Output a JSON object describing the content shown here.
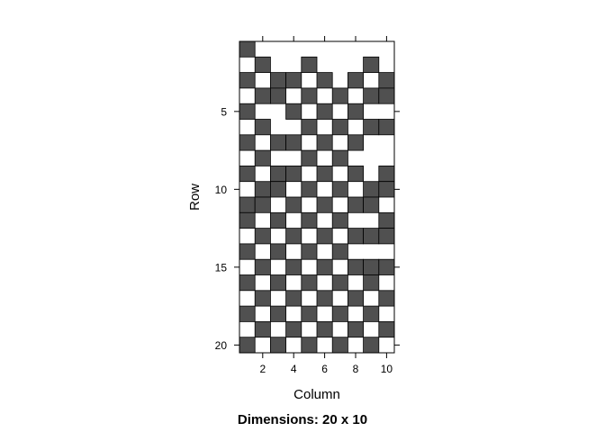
{
  "chart_data": {
    "type": "heatmap",
    "title": "Dimensions: 20 x 10",
    "xlabel": "Column",
    "ylabel": "Row",
    "xlim": [
      0.5,
      10.5
    ],
    "ylim": [
      0.5,
      20.5
    ],
    "y_reversed": true,
    "x_ticks": [
      2,
      4,
      6,
      8,
      10
    ],
    "y_ticks": [
      5,
      10,
      15,
      20
    ],
    "grid": false,
    "colors": {
      "filled": "#505050",
      "empty": "#ffffff",
      "border": "#000000"
    },
    "matrix": [
      [
        1,
        0,
        0,
        0,
        0,
        0,
        0,
        0,
        0,
        0
      ],
      [
        0,
        1,
        0,
        0,
        1,
        0,
        0,
        0,
        1,
        0
      ],
      [
        1,
        0,
        1,
        1,
        0,
        1,
        0,
        1,
        0,
        1
      ],
      [
        0,
        1,
        1,
        0,
        1,
        0,
        1,
        0,
        1,
        1
      ],
      [
        1,
        0,
        0,
        1,
        0,
        1,
        0,
        1,
        0,
        0
      ],
      [
        0,
        1,
        0,
        0,
        1,
        0,
        1,
        0,
        1,
        1
      ],
      [
        1,
        0,
        1,
        1,
        0,
        1,
        0,
        1,
        0,
        0
      ],
      [
        0,
        1,
        0,
        0,
        1,
        0,
        1,
        0,
        0,
        0
      ],
      [
        1,
        0,
        1,
        1,
        0,
        1,
        0,
        1,
        0,
        1
      ],
      [
        0,
        1,
        1,
        0,
        1,
        0,
        1,
        0,
        1,
        1
      ],
      [
        1,
        1,
        0,
        1,
        0,
        1,
        0,
        1,
        1,
        0
      ],
      [
        1,
        0,
        1,
        0,
        1,
        0,
        1,
        0,
        0,
        1
      ],
      [
        0,
        1,
        0,
        1,
        0,
        1,
        0,
        1,
        1,
        1
      ],
      [
        1,
        0,
        1,
        0,
        1,
        0,
        1,
        0,
        0,
        0
      ],
      [
        0,
        1,
        0,
        1,
        0,
        1,
        0,
        1,
        1,
        1
      ],
      [
        1,
        0,
        1,
        0,
        1,
        0,
        1,
        0,
        1,
        0
      ],
      [
        0,
        1,
        0,
        1,
        0,
        1,
        0,
        1,
        0,
        1
      ],
      [
        1,
        0,
        1,
        0,
        1,
        0,
        1,
        0,
        1,
        0
      ],
      [
        0,
        1,
        0,
        1,
        0,
        1,
        0,
        1,
        0,
        1
      ],
      [
        1,
        0,
        1,
        0,
        1,
        0,
        1,
        0,
        1,
        0
      ]
    ]
  }
}
